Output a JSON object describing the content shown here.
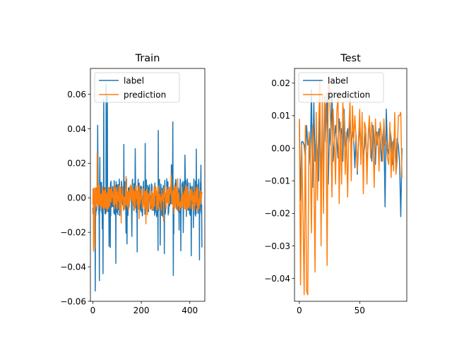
{
  "chart_data": [
    {
      "type": "line",
      "title": "Train",
      "xlabel": "",
      "ylabel": "",
      "xlim": [
        -10,
        462
      ],
      "ylim": [
        -0.06,
        0.075
      ],
      "xticks": [
        0,
        200,
        400
      ],
      "xtick_labels": [
        "0",
        "200",
        "400"
      ],
      "yticks": [
        -0.06,
        -0.04,
        -0.02,
        0.0,
        0.02,
        0.04,
        0.06
      ],
      "ytick_labels": [
        "−0.06",
        "−0.04",
        "−0.02",
        "0.00",
        "0.02",
        "0.04",
        "0.06"
      ],
      "grid": false,
      "legend": "upper-left",
      "series": [
        {
          "name": "label",
          "color": "#1f77b4",
          "noise": {
            "n": 451,
            "seed": 11,
            "amp": 0.011,
            "spikes": 0.07,
            "spike_amp": 0.034
          },
          "keypoints": [
            [
              20,
              0.042
            ],
            [
              45,
              0.057
            ],
            [
              55,
              0.066
            ],
            [
              60,
              0.059
            ],
            [
              10,
              -0.054
            ],
            [
              27,
              -0.048
            ],
            [
              42,
              -0.044
            ],
            [
              95,
              -0.038
            ],
            [
              330,
              0.044
            ],
            [
              332,
              -0.045
            ],
            [
              270,
              0.039
            ],
            [
              440,
              -0.036
            ]
          ]
        },
        {
          "name": "prediction",
          "color": "#ff7f0e",
          "noise": {
            "n": 451,
            "seed": 5,
            "amp": 0.0075,
            "spikes": 0.03,
            "spike_amp": 0.017
          },
          "keypoints": [
            [
              8,
              -0.029
            ],
            [
              18,
              0.026
            ],
            [
              3,
              -0.031
            ]
          ]
        }
      ]
    },
    {
      "type": "line",
      "title": "Test",
      "xlabel": "",
      "ylabel": "",
      "xlim": [
        -4,
        89
      ],
      "ylim": [
        -0.047,
        0.0245
      ],
      "xticks": [
        0,
        50
      ],
      "xtick_labels": [
        "0",
        "50"
      ],
      "yticks": [
        -0.04,
        -0.03,
        -0.02,
        -0.01,
        0.0,
        0.01,
        0.02
      ],
      "ytick_labels": [
        "−0.04",
        "−0.03",
        "−0.02",
        "−0.01",
        "0.00",
        "0.01",
        "0.02"
      ],
      "grid": false,
      "legend": "upper-left",
      "series": [
        {
          "name": "label",
          "color": "#1f77b4",
          "x": [
            0,
            1,
            2,
            3,
            4,
            5,
            6,
            7,
            8,
            9,
            10,
            11,
            12,
            13,
            14,
            15,
            16,
            17,
            18,
            19,
            20,
            21,
            22,
            23,
            24,
            25,
            26,
            27,
            28,
            29,
            30,
            31,
            32,
            33,
            34,
            35,
            36,
            37,
            38,
            39,
            40,
            41,
            42,
            43,
            44,
            45,
            46,
            47,
            48,
            49,
            50,
            51,
            52,
            53,
            54,
            55,
            56,
            57,
            58,
            59,
            60,
            61,
            62,
            63,
            64,
            65,
            66,
            67,
            68,
            69,
            70,
            71,
            72,
            73,
            74,
            75,
            76,
            77,
            78,
            79,
            80,
            81,
            82,
            83,
            84,
            85
          ],
          "y": [
            0.009,
            -0.016,
            0.002,
            0.002,
            0.001,
            -0.003,
            0.007,
            0.001,
            0.003,
            -0.005,
            0.018,
            -0.012,
            0.014,
            -0.004,
            0.004,
            -0.002,
            -0.01,
            0.012,
            -0.008,
            0.003,
            -0.006,
            0.016,
            0.002,
            0.017,
            -0.011,
            0.006,
            0.001,
            0.017,
            -0.004,
            0.002,
            0.007,
            0.003,
            -0.003,
            0.009,
            0.004,
            0.006,
            -0.004,
            0.012,
            0.001,
            0.0,
            0.006,
            0.002,
            0.009,
            0.0,
            0.005,
            0.003,
            -0.006,
            0.004,
            -0.008,
            0.001,
            0.006,
            0.002,
            0.003,
            -0.002,
            0.0,
            0.005,
            -0.006,
            0.002,
            0.009,
            0.001,
            -0.004,
            0.007,
            0.002,
            -0.005,
            0.005,
            0.001,
            0.006,
            0.002,
            -0.004,
            0.003,
            0.007,
            -0.018,
            0.012,
            0.0,
            -0.002,
            0.006,
            0.003,
            -0.005,
            0.002,
            0.004,
            -0.007,
            0.003,
            0.001,
            -0.004,
            -0.021,
            0.0
          ]
        },
        {
          "name": "prediction",
          "color": "#ff7f0e",
          "x": [
            0,
            1,
            2,
            3,
            4,
            5,
            6,
            7,
            8,
            9,
            10,
            11,
            12,
            13,
            14,
            15,
            16,
            17,
            18,
            19,
            20,
            21,
            22,
            23,
            24,
            25,
            26,
            27,
            28,
            29,
            30,
            31,
            32,
            33,
            34,
            35,
            36,
            37,
            38,
            39,
            40,
            41,
            42,
            43,
            44,
            45,
            46,
            47,
            48,
            49,
            50,
            51,
            52,
            53,
            54,
            55,
            56,
            57,
            58,
            59,
            60,
            61,
            62,
            63,
            64,
            65,
            66,
            67,
            68,
            69,
            70,
            71,
            72,
            73,
            74,
            75,
            76,
            77,
            78,
            79,
            80,
            81,
            82,
            83,
            84,
            85
          ],
          "y": [
            0.009,
            -0.042,
            0.001,
            -0.02,
            -0.045,
            0.007,
            -0.044,
            -0.045,
            0.005,
            0.001,
            -0.026,
            0.007,
            -0.005,
            -0.038,
            0.011,
            -0.016,
            0.007,
            0.021,
            -0.03,
            0.016,
            -0.02,
            0.015,
            0.013,
            -0.036,
            0.022,
            0.018,
            0.006,
            -0.015,
            0.012,
            0.003,
            -0.011,
            0.011,
            0.016,
            -0.017,
            0.008,
            -0.011,
            0.014,
            0.009,
            -0.008,
            0.005,
            -0.015,
            0.006,
            0.015,
            -0.01,
            0.013,
            0.002,
            0.01,
            0.003,
            -0.007,
            0.002,
            0.012,
            -0.005,
            0.011,
            -0.014,
            0.008,
            0.006,
            -0.011,
            0.004,
            0.01,
            -0.003,
            0.008,
            0.003,
            -0.012,
            0.009,
            0.001,
            0.005,
            -0.007,
            0.008,
            0.004,
            -0.004,
            0.009,
            0.001,
            0.002,
            -0.003,
            -0.005,
            0.008,
            -0.009,
            0.002,
            -0.007,
            0.011,
            -0.008,
            -0.004,
            0.01,
            0.01,
            0.011,
            -0.009
          ]
        }
      ]
    }
  ]
}
